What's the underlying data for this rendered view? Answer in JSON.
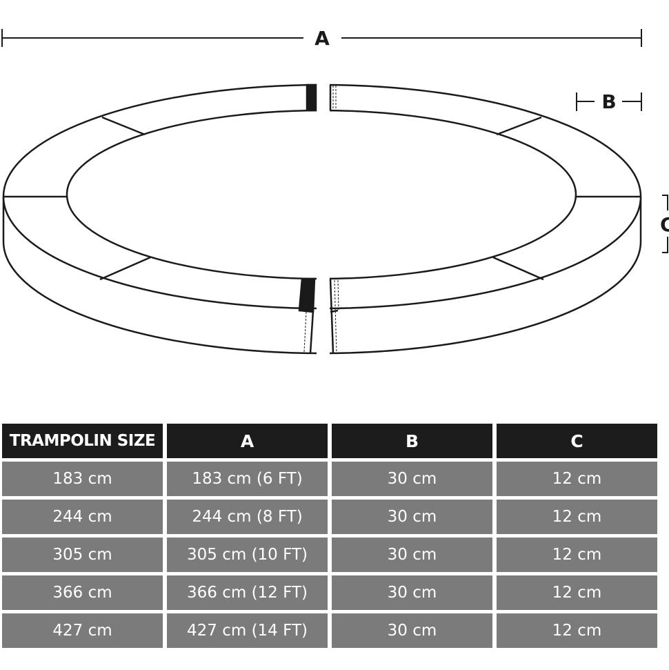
{
  "diagram": {
    "labels": {
      "a": "A",
      "b": "B",
      "c": "C"
    }
  },
  "table": {
    "headers": [
      "TRAMPOLIN SIZE",
      "A",
      "B",
      "C"
    ],
    "rows": [
      [
        "183 cm",
        "183 cm (6 FT)",
        "30 cm",
        "12 cm"
      ],
      [
        "244 cm",
        "244 cm (8 FT)",
        "30 cm",
        "12 cm"
      ],
      [
        "305 cm",
        "305 cm (10 FT)",
        "30 cm",
        "12 cm"
      ],
      [
        "366 cm",
        "366 cm (12 FT)",
        "30 cm",
        "12 cm"
      ],
      [
        "427 cm",
        "427 cm (14 FT)",
        "30 cm",
        "12 cm"
      ]
    ],
    "colors": {
      "header": "#1c1c1c",
      "cell": "#7b7b7b"
    }
  }
}
